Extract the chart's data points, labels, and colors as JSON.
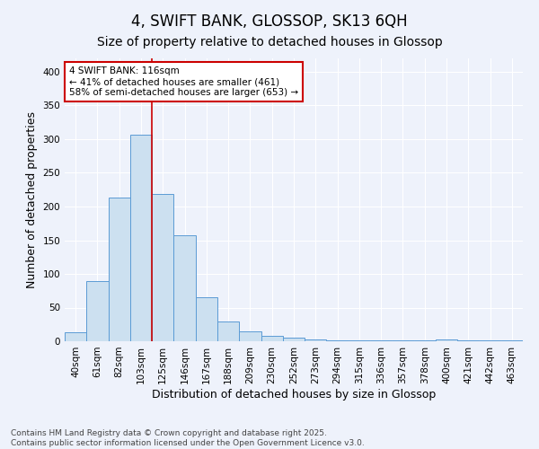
{
  "title": "4, SWIFT BANK, GLOSSOP, SK13 6QH",
  "subtitle": "Size of property relative to detached houses in Glossop",
  "xlabel": "Distribution of detached houses by size in Glossop",
  "ylabel": "Number of detached properties",
  "footnote": "Contains HM Land Registry data © Crown copyright and database right 2025.\nContains public sector information licensed under the Open Government Licence v3.0.",
  "bar_labels": [
    "40sqm",
    "61sqm",
    "82sqm",
    "103sqm",
    "125sqm",
    "146sqm",
    "167sqm",
    "188sqm",
    "209sqm",
    "230sqm",
    "252sqm",
    "273sqm",
    "294sqm",
    "315sqm",
    "336sqm",
    "357sqm",
    "378sqm",
    "400sqm",
    "421sqm",
    "442sqm",
    "463sqm"
  ],
  "bar_values": [
    13,
    90,
    213,
    307,
    218,
    158,
    65,
    30,
    15,
    8,
    5,
    3,
    2,
    2,
    1,
    2,
    1,
    3,
    2,
    1,
    2
  ],
  "bar_color": "#cce0f0",
  "bar_edge_color": "#5b9bd5",
  "background_color": "#eef2fb",
  "grid_color": "#ffffff",
  "annotation_text": "4 SWIFT BANK: 116sqm\n← 41% of detached houses are smaller (461)\n58% of semi-detached houses are larger (653) →",
  "vline_x": 3.5,
  "vline_color": "#cc0000",
  "box_color": "#cc0000",
  "ylim": [
    0,
    420
  ],
  "yticks": [
    0,
    50,
    100,
    150,
    200,
    250,
    300,
    350,
    400
  ],
  "title_fontsize": 12,
  "subtitle_fontsize": 10,
  "axis_label_fontsize": 9,
  "tick_fontsize": 7.5,
  "annotation_fontsize": 7.5,
  "footnote_fontsize": 6.5
}
